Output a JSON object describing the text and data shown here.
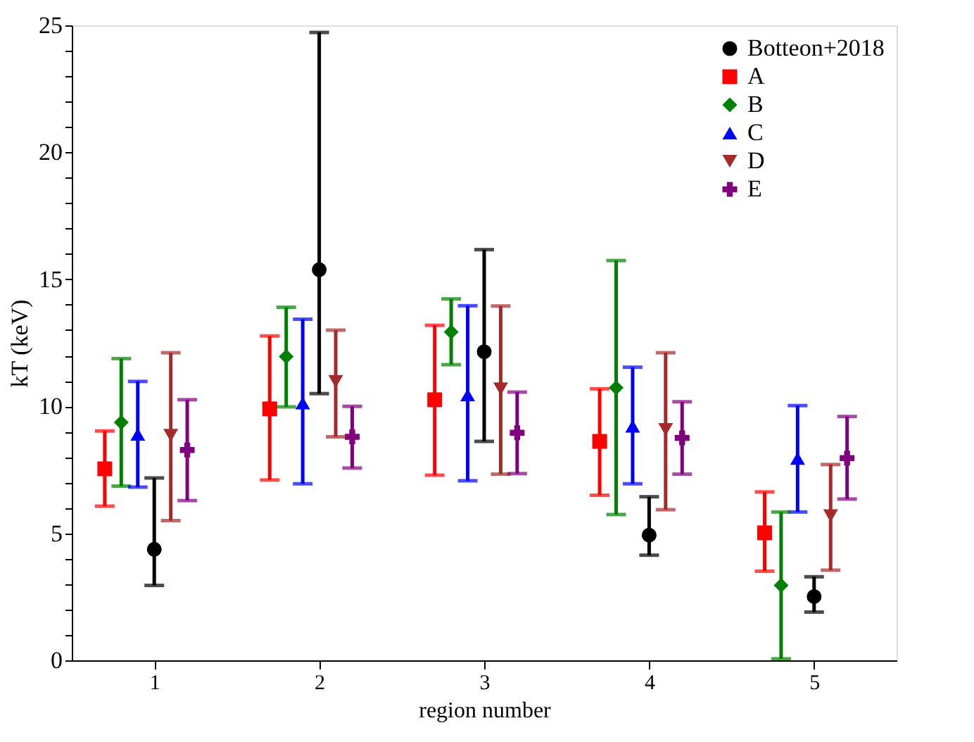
{
  "chart_data": {
    "type": "scatter",
    "xlabel": "region number",
    "ylabel": "kT (keV)",
    "xlim": [
      0.5,
      5.5
    ],
    "xticks": [
      1,
      2,
      3,
      4,
      5
    ],
    "ylim": [
      0,
      25
    ],
    "yticks": [
      0,
      {
        "value": 1,
        "label": null
      },
      {
        "value": 2,
        "label": null
      },
      {
        "value": 3,
        "label": null
      },
      {
        "value": 4,
        "label": null
      },
      5,
      {
        "value": 6,
        "label": null
      },
      {
        "value": 7,
        "label": null
      },
      {
        "value": 8,
        "label": null
      },
      {
        "value": 9,
        "label": null
      },
      10,
      {
        "value": 11,
        "label": null
      },
      {
        "value": 12,
        "label": null
      },
      {
        "value": 13,
        "label": null
      },
      {
        "value": 14,
        "label": null
      },
      15,
      {
        "value": 16,
        "label": null
      },
      {
        "value": 17,
        "label": null
      },
      {
        "value": 18,
        "label": null
      },
      {
        "value": 19,
        "label": null
      },
      20,
      {
        "value": 21,
        "label": null
      },
      {
        "value": 22,
        "label": null
      },
      {
        "value": 23,
        "label": null
      },
      {
        "value": 24,
        "label": null
      },
      25
    ],
    "grid": false,
    "legend": "top right",
    "series": [
      {
        "name": "Botteon+2018",
        "color": "#000000",
        "marker": "circle",
        "x": [
          1,
          2,
          3,
          4,
          5
        ],
        "values": [
          4.37,
          15.38,
          12.15,
          4.93,
          2.51
        ],
        "errors": [
          [
            2.95,
            7.18
          ],
          [
            10.5,
            24.72
          ],
          [
            8.62,
            16.17
          ],
          [
            4.14,
            6.44
          ],
          [
            1.9,
            3.29
          ]
        ]
      },
      {
        "name": "A",
        "color": "#ff0000",
        "marker": "square",
        "x": [
          0.7,
          1.7,
          2.7,
          3.7,
          4.7
        ],
        "values": [
          7.54,
          9.9,
          10.26,
          8.62,
          5.02
        ],
        "errors": [
          [
            6.07,
            9.03
          ],
          [
            7.1,
            12.77
          ],
          [
            7.29,
            13.19
          ],
          [
            6.5,
            10.69
          ],
          [
            3.51,
            6.63
          ]
        ]
      },
      {
        "name": "B",
        "color": "#008000",
        "marker": "diamond",
        "x": [
          0.8,
          1.8,
          2.8,
          3.8,
          4.8
        ],
        "values": [
          9.37,
          11.96,
          12.93,
          10.73,
          2.95
        ],
        "errors": [
          [
            6.86,
            11.88
          ],
          [
            9.98,
            13.9
          ],
          [
            11.64,
            14.23
          ],
          [
            5.74,
            15.74
          ],
          [
            0.06,
            5.84
          ]
        ]
      },
      {
        "name": "C",
        "color": "#0000ff",
        "marker": "triangle",
        "x": [
          0.9,
          1.9,
          2.9,
          3.9,
          4.9
        ],
        "values": [
          8.9,
          10.13,
          10.45,
          9.22,
          7.95
        ],
        "errors": [
          [
            6.82,
            10.98
          ],
          [
            6.95,
            13.43
          ],
          [
            7.07,
            13.96
          ],
          [
            6.95,
            11.54
          ],
          [
            5.84,
            10.03
          ]
        ]
      },
      {
        "name": "D",
        "color": "#a52a2a",
        "marker": "triangle-down",
        "x": [
          1.1,
          2.1,
          3.1,
          4.1,
          5.1
        ],
        "values": [
          8.86,
          10.98,
          10.69,
          9.09,
          5.69
        ],
        "errors": [
          [
            5.5,
            12.11
          ],
          [
            8.8,
            13.0
          ],
          [
            7.33,
            13.95
          ],
          [
            5.93,
            12.11
          ],
          [
            3.55,
            7.71
          ]
        ]
      },
      {
        "name": "E",
        "color": "#800080",
        "marker": "cross",
        "x": [
          1.2,
          2.2,
          3.2,
          4.2,
          5.2
        ],
        "values": [
          8.28,
          8.8,
          8.96,
          8.76,
          7.96
        ],
        "errors": [
          [
            6.29,
            10.26
          ],
          [
            7.57,
            10.0
          ],
          [
            7.35,
            10.56
          ],
          [
            7.33,
            10.18
          ],
          [
            6.35,
            9.6
          ]
        ]
      }
    ]
  }
}
